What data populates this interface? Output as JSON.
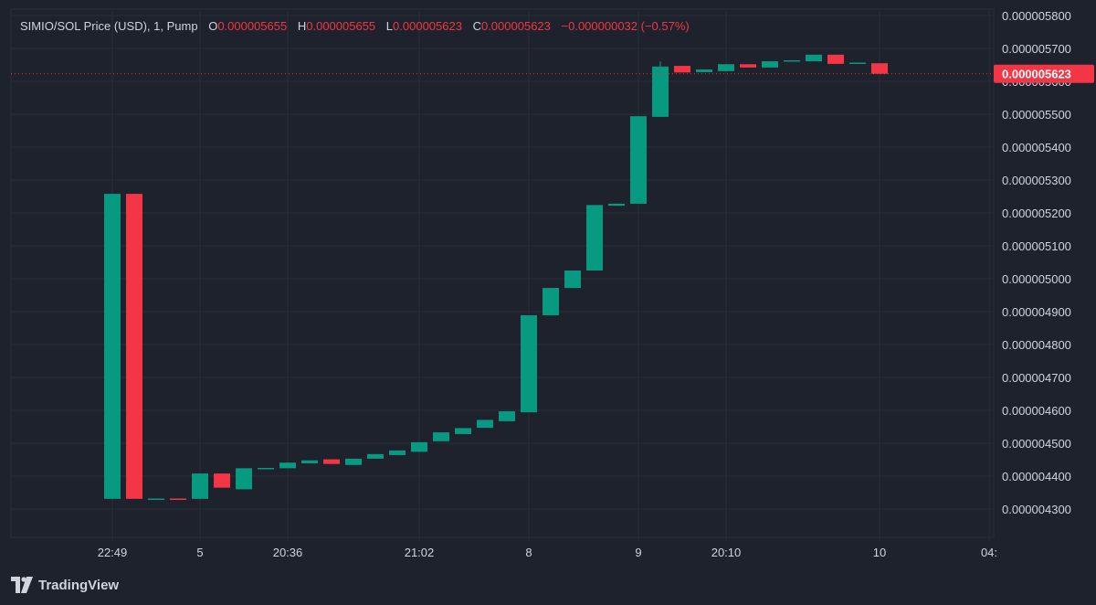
{
  "legend": {
    "symbol": "SIMIO/SOL Price (USD), 1, Pump",
    "o_label": "O",
    "o_value": "0.000005655",
    "h_label": "H",
    "h_value": "0.000005655",
    "l_label": "L",
    "l_value": "0.000005623",
    "c_label": "C",
    "c_value": "0.000005623",
    "change": "−0.000000032 (−0.57%)"
  },
  "footer": {
    "brand": "TradingView",
    "logo_icon": "tradingview-logo-icon"
  },
  "colors": {
    "background": "#1e222d",
    "grid": "#2a2e39",
    "up": "#089981",
    "down": "#f23645",
    "text": "#d1d4dc"
  },
  "chart_data": {
    "type": "candlestick",
    "title": "SIMIO/SOL Price (USD), 1, Pump",
    "y_unit": "USD",
    "ylim": [
      4.25e-06,
      5.82e-06
    ],
    "y_ticks": [
      4.3e-06,
      4.4e-06,
      4.5e-06,
      4.6e-06,
      4.7e-06,
      4.8e-06,
      4.9e-06,
      5e-06,
      5.1e-06,
      5.2e-06,
      5.3e-06,
      5.4e-06,
      5.5e-06,
      5.6e-06,
      5.7e-06,
      5.8e-06
    ],
    "y_tick_labels": [
      "0.000004300",
      "0.000004400",
      "0.000004500",
      "0.000004600",
      "0.000004700",
      "0.000004800",
      "0.000004900",
      "0.000005000",
      "0.000005100",
      "0.000005200",
      "0.000005300",
      "0.000005400",
      "0.000005500",
      "0.000005600",
      "0.000005700",
      "0.000005800"
    ],
    "last_price": 5.623e-06,
    "last_price_label": "0.000005623",
    "x_ticks": [
      {
        "label": "22:49",
        "bar": 0
      },
      {
        "label": "5",
        "bar": 4
      },
      {
        "label": "20:36",
        "bar": 8
      },
      {
        "label": "21:02",
        "bar": 14
      },
      {
        "label": "8",
        "bar": 19
      },
      {
        "label": "9",
        "bar": 24
      },
      {
        "label": "20:10",
        "bar": 28
      },
      {
        "label": "10",
        "bar": 35
      },
      {
        "label": "04:",
        "bar": 40
      }
    ],
    "grid": true,
    "candles": [
      {
        "o": 4.331e-06,
        "h": 5.258e-06,
        "l": 4.331e-06,
        "c": 5.258e-06
      },
      {
        "o": 5.258e-06,
        "h": 5.258e-06,
        "l": 4.331e-06,
        "c": 4.331e-06
      },
      {
        "o": 4.331e-06,
        "h": 4.331e-06,
        "l": 4.331e-06,
        "c": 4.332e-06
      },
      {
        "o": 4.332e-06,
        "h": 4.332e-06,
        "l": 4.331e-06,
        "c": 4.331e-06
      },
      {
        "o": 4.331e-06,
        "h": 4.408e-06,
        "l": 4.331e-06,
        "c": 4.408e-06
      },
      {
        "o": 4.408e-06,
        "h": 4.408e-06,
        "l": 4.365e-06,
        "c": 4.365e-06
      },
      {
        "o": 4.36e-06,
        "h": 4.424e-06,
        "l": 4.36e-06,
        "c": 4.424e-06
      },
      {
        "o": 4.421e-06,
        "h": 4.425e-06,
        "l": 4.421e-06,
        "c": 4.425e-06
      },
      {
        "o": 4.424e-06,
        "h": 4.441e-06,
        "l": 4.424e-06,
        "c": 4.441e-06
      },
      {
        "o": 4.439e-06,
        "h": 4.448e-06,
        "l": 4.439e-06,
        "c": 4.448e-06
      },
      {
        "o": 4.451e-06,
        "h": 4.451e-06,
        "l": 4.437e-06,
        "c": 4.437e-06
      },
      {
        "o": 4.434e-06,
        "h": 4.453e-06,
        "l": 4.434e-06,
        "c": 4.453e-06
      },
      {
        "o": 4.453e-06,
        "h": 4.467e-06,
        "l": 4.453e-06,
        "c": 4.467e-06
      },
      {
        "o": 4.464e-06,
        "h": 4.478e-06,
        "l": 4.464e-06,
        "c": 4.478e-06
      },
      {
        "o": 4.474e-06,
        "h": 4.503e-06,
        "l": 4.474e-06,
        "c": 4.503e-06
      },
      {
        "o": 4.506e-06,
        "h": 4.533e-06,
        "l": 4.506e-06,
        "c": 4.533e-06
      },
      {
        "o": 4.528e-06,
        "h": 4.546e-06,
        "l": 4.528e-06,
        "c": 4.546e-06
      },
      {
        "o": 4.547e-06,
        "h": 4.571e-06,
        "l": 4.547e-06,
        "c": 4.571e-06
      },
      {
        "o": 4.567e-06,
        "h": 4.597e-06,
        "l": 4.567e-06,
        "c": 4.597e-06
      },
      {
        "o": 4.594e-06,
        "h": 4.889e-06,
        "l": 4.594e-06,
        "c": 4.889e-06
      },
      {
        "o": 4.889e-06,
        "h": 4.972e-06,
        "l": 4.889e-06,
        "c": 4.972e-06
      },
      {
        "o": 4.972e-06,
        "h": 5.025e-06,
        "l": 4.972e-06,
        "c": 5.025e-06
      },
      {
        "o": 5.025e-06,
        "h": 5.224e-06,
        "l": 5.025e-06,
        "c": 5.224e-06
      },
      {
        "o": 5.222e-06,
        "h": 5.228e-06,
        "l": 5.222e-06,
        "c": 5.228e-06
      },
      {
        "o": 5.228e-06,
        "h": 5.494e-06,
        "l": 5.228e-06,
        "c": 5.494e-06
      },
      {
        "o": 5.492e-06,
        "h": 5.661e-06,
        "l": 5.492e-06,
        "c": 5.645e-06
      },
      {
        "o": 5.647e-06,
        "h": 5.647e-06,
        "l": 5.627e-06,
        "c": 5.627e-06
      },
      {
        "o": 5.628e-06,
        "h": 5.636e-06,
        "l": 5.628e-06,
        "c": 5.636e-06
      },
      {
        "o": 5.631e-06,
        "h": 5.652e-06,
        "l": 5.631e-06,
        "c": 5.652e-06
      },
      {
        "o": 5.652e-06,
        "h": 5.652e-06,
        "l": 5.642e-06,
        "c": 5.642e-06
      },
      {
        "o": 5.642e-06,
        "h": 5.661e-06,
        "l": 5.642e-06,
        "c": 5.661e-06
      },
      {
        "o": 5.66e-06,
        "h": 5.664e-06,
        "l": 5.66e-06,
        "c": 5.664e-06
      },
      {
        "o": 5.661e-06,
        "h": 5.681e-06,
        "l": 5.661e-06,
        "c": 5.681e-06
      },
      {
        "o": 5.681e-06,
        "h": 5.681e-06,
        "l": 5.653e-06,
        "c": 5.653e-06
      },
      {
        "o": 5.655e-06,
        "h": 5.657e-06,
        "l": 5.655e-06,
        "c": 5.657e-06
      },
      {
        "o": 5.655e-06,
        "h": 5.655e-06,
        "l": 5.623e-06,
        "c": 5.623e-06
      }
    ]
  }
}
